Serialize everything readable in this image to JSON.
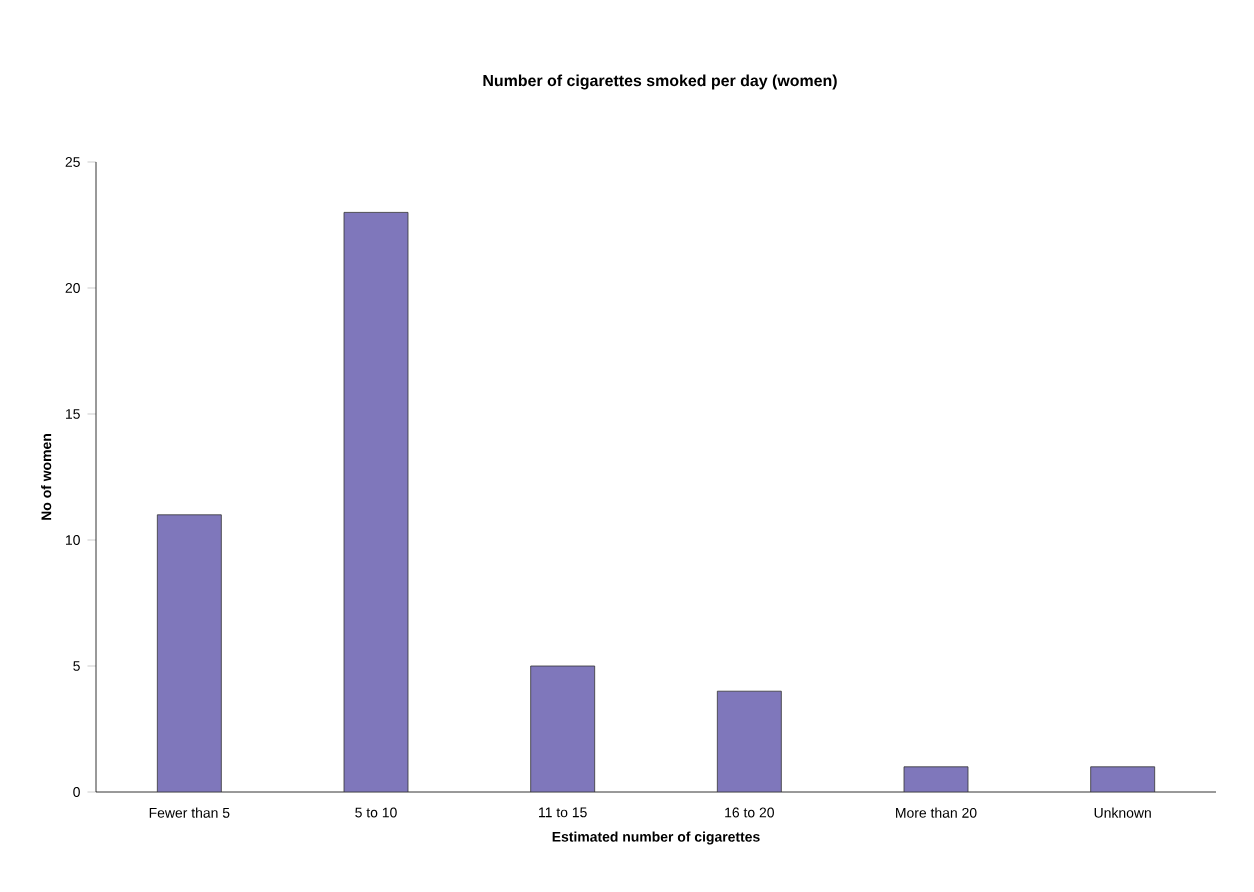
{
  "chart_data": {
    "type": "bar",
    "title": "Number of cigarettes smoked per day (women)",
    "xlabel": "Estimated number of cigarettes",
    "ylabel": "No of women",
    "categories": [
      "Fewer than 5",
      "5 to 10",
      "11 to 15",
      "16 to 20",
      "More than 20",
      "Unknown"
    ],
    "values": [
      11,
      23,
      5,
      4,
      1,
      1
    ],
    "color": "#7f77bb",
    "ylim": [
      0,
      25
    ],
    "yticks": [
      0,
      5,
      10,
      15,
      20,
      25
    ]
  }
}
